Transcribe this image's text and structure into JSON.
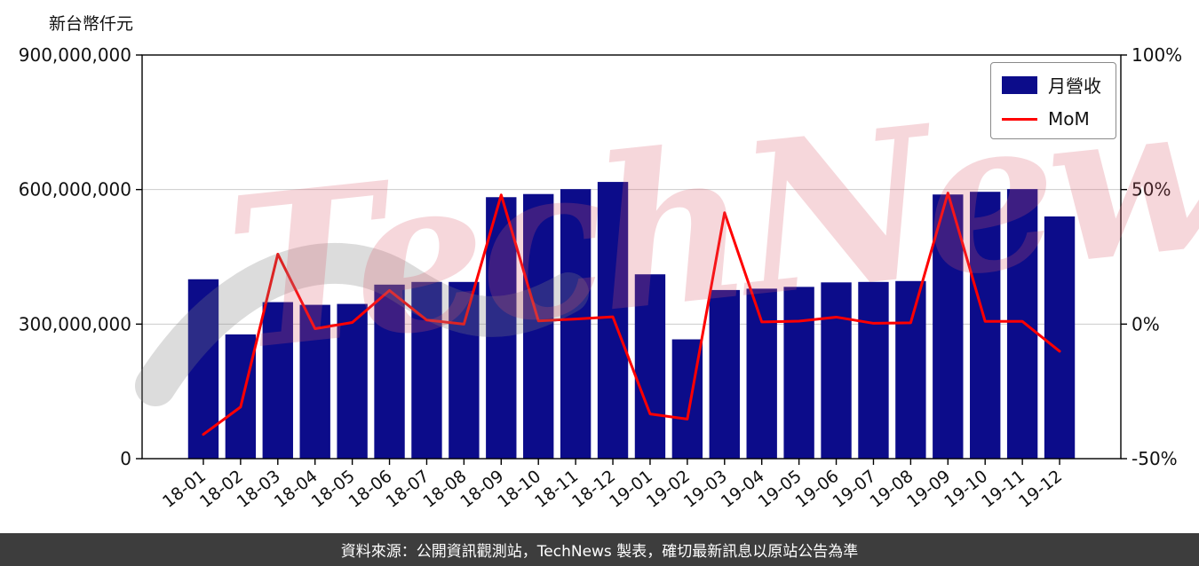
{
  "watermark": "TechNews",
  "footer": {
    "text": "資料來源：公開資訊觀測站，TechNews 製表，確切最新訊息以原站公告為準"
  },
  "colors": {
    "bar": "#0c0c8a",
    "line": "#ff0000",
    "grid": "#cccccc",
    "axis": "#000000",
    "footer_bg": "#3d3d3d",
    "watermark_pink": "rgba(219,88,104,0.24)",
    "watermark_gray": "rgba(130,130,130,0.28)"
  },
  "chart_data": {
    "type": "bar+line",
    "title": "",
    "categories": [
      "18-01",
      "18-02",
      "18-03",
      "18-04",
      "18-05",
      "18-06",
      "18-07",
      "18-08",
      "18-09",
      "18-10",
      "18-11",
      "18-12",
      "19-01",
      "19-02",
      "19-03",
      "19-04",
      "19-05",
      "19-06",
      "19-07",
      "19-08",
      "19-09",
      "19-10",
      "19-11",
      "19-12"
    ],
    "series": [
      {
        "name": "月營收",
        "type": "bar",
        "axis": "left",
        "color": "#0c0c8a",
        "values": [
          400000000,
          277000000,
          349000000,
          343000000,
          345000000,
          388000000,
          394000000,
          394000000,
          583000000,
          590000000,
          601000000,
          617000000,
          411000000,
          266000000,
          376000000,
          379000000,
          383000000,
          393000000,
          394000000,
          396000000,
          589000000,
          595000000,
          601000000,
          540000000
        ]
      },
      {
        "name": "MoM",
        "type": "line",
        "axis": "right",
        "color": "#ff0000",
        "values": [
          -41.0,
          -30.8,
          26.0,
          -1.7,
          0.6,
          12.5,
          1.5,
          0.0,
          48.0,
          1.2,
          1.9,
          2.7,
          -33.4,
          -35.3,
          41.4,
          0.8,
          1.1,
          2.6,
          0.3,
          0.5,
          48.7,
          1.0,
          1.0,
          -10.1
        ]
      }
    ],
    "left_axis": {
      "title": "新台幣仟元",
      "range": [
        0,
        900000000
      ],
      "ticks": [
        {
          "value": 0,
          "label": "0"
        },
        {
          "value": 300000000,
          "label": "300,000,000"
        },
        {
          "value": 600000000,
          "label": "600,000,000"
        },
        {
          "value": 900000000,
          "label": "900,000,000"
        }
      ]
    },
    "right_axis": {
      "range": [
        -50,
        100
      ],
      "ticks": [
        {
          "value": -50,
          "label": "-50%"
        },
        {
          "value": 0,
          "label": "0%"
        },
        {
          "value": 50,
          "label": "50%"
        },
        {
          "value": 100,
          "label": "100%"
        }
      ]
    },
    "grid": "horizontal",
    "legend_position": "top-right"
  }
}
